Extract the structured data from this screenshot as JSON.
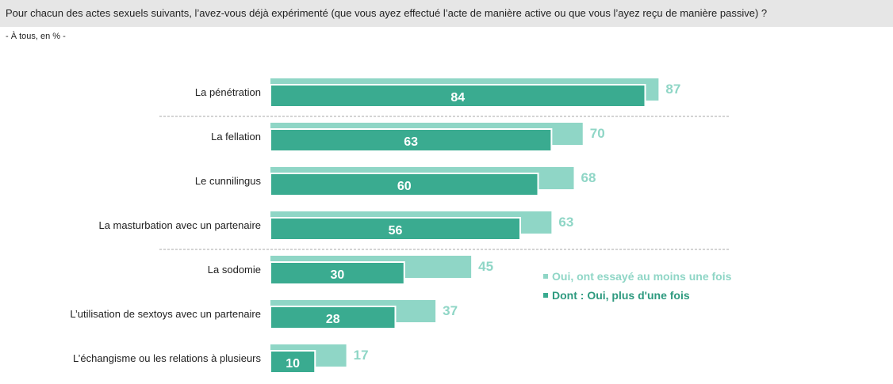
{
  "header": {
    "question": "Pour chacun des actes sexuels suivants, l’avez-vous déjà expérimenté (que vous ayez effectué l’acte de manière active ou que vous l’ayez reçu de manière passive) ?",
    "base": "- À tous, en % -"
  },
  "colors": {
    "series_light": "#8fd6c6",
    "series_dark": "#3aab90",
    "legend_light_text": "#8fd6c6",
    "legend_dark_text": "#2e9a7f",
    "divider": "#aaaaaa"
  },
  "legend": {
    "light_label": "Oui, ont essayé au moins une fois",
    "dark_label": "Dont : Oui, plus d'une fois"
  },
  "chart_data": {
    "type": "bar",
    "orientation": "horizontal",
    "categories": [
      "La pénétration",
      "La fellation",
      "Le cunnilingus",
      "La masturbation avec un partenaire",
      "La sodomie",
      "L’utilisation de sextoys avec un partenaire",
      "L’échangisme ou les relations à plusieurs"
    ],
    "series": [
      {
        "name": "Oui, ont essayé au moins une fois",
        "values": [
          87,
          70,
          68,
          63,
          45,
          37,
          17
        ]
      },
      {
        "name": "Dont : Oui, plus d'une fois",
        "values": [
          84,
          63,
          60,
          56,
          30,
          28,
          10
        ]
      }
    ],
    "xlim": [
      0,
      100
    ],
    "grid": false,
    "legend_position": "right",
    "dividers_after": [
      0,
      3
    ]
  }
}
